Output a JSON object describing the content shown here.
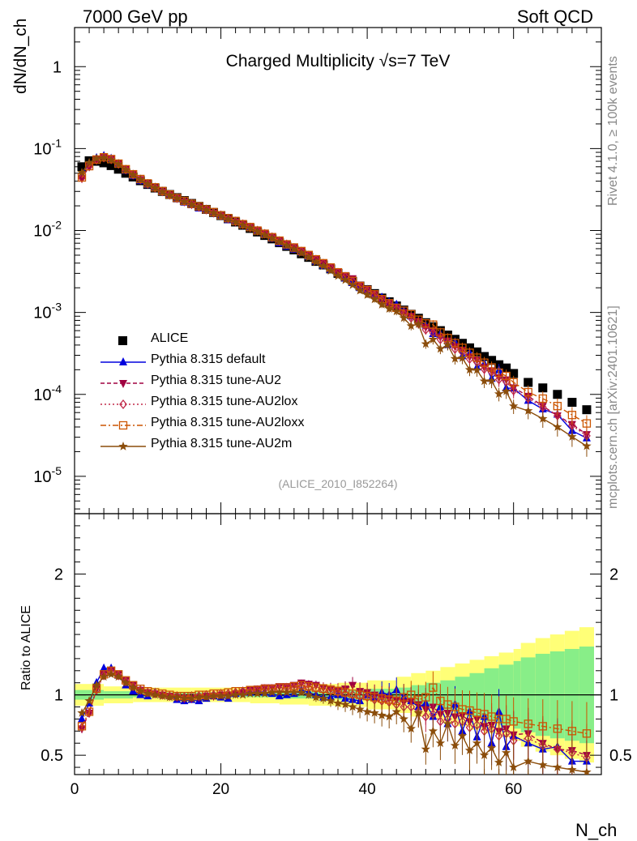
{
  "header": {
    "left": "7000 GeV pp",
    "right": "Soft QCD"
  },
  "side_labels": {
    "top": "Rivet 4.1.0, ≥ 100k events",
    "bottom": "mcplots.cern.ch [arXiv:2401.10621]"
  },
  "chart_data": {
    "type": "scatter",
    "title": "Charged Multiplicity √s=7 TeV",
    "analysis": "(ALICE_2010_I852264)",
    "xlabel": "N_ch",
    "ylabel": "dN/dN_ch",
    "ratio_ylabel": "Ratio to ALICE",
    "xlim": [
      0,
      72
    ],
    "ylim": [
      3.5e-06,
      3
    ],
    "ratio_ylim": [
      0.34,
      2.5
    ],
    "x_ticks": [
      "0",
      "20",
      "40",
      "60"
    ],
    "y_ticks": [
      "10^-5",
      "10^-4",
      "10^-3",
      "10^-2",
      "10^-1",
      "1"
    ],
    "ratio_ticks": [
      "0.5",
      "1",
      "2"
    ],
    "reference": {
      "name": "ALICE",
      "x": [
        1,
        2,
        3,
        4,
        5,
        6,
        7,
        8,
        9,
        10,
        11,
        12,
        13,
        14,
        15,
        16,
        17,
        18,
        19,
        20,
        21,
        22,
        23,
        24,
        25,
        26,
        27,
        28,
        29,
        30,
        31,
        32,
        33,
        34,
        35,
        36,
        37,
        38,
        39,
        40,
        41,
        42,
        43,
        44,
        45,
        46,
        47,
        48,
        49,
        50,
        51,
        52,
        53,
        54,
        55,
        56,
        57,
        58,
        59,
        60,
        62,
        64,
        66,
        68,
        70
      ],
      "values": [
        0.06,
        0.071,
        0.07,
        0.067,
        0.062,
        0.056,
        0.05,
        0.045,
        0.0405,
        0.0365,
        0.033,
        0.03,
        0.0275,
        0.0252,
        0.0232,
        0.0214,
        0.0197,
        0.0181,
        0.0166,
        0.0152,
        0.0139,
        0.0127,
        0.0116,
        0.0106,
        0.0096,
        0.0087,
        0.0079,
        0.0071,
        0.0064,
        0.0058,
        0.0052,
        0.0047,
        0.0042,
        0.0038,
        0.0034,
        0.003,
        0.0027,
        0.0024,
        0.0021,
        0.0019,
        0.0017,
        0.0015,
        0.00135,
        0.0012,
        0.00107,
        0.00095,
        0.00085,
        0.00075,
        0.00067,
        0.0006,
        0.00053,
        0.00047,
        0.00042,
        0.00037,
        0.00033,
        0.00029,
        0.00026,
        0.00023,
        0.00021,
        0.00018,
        0.00014,
        0.00012,
        0.0001,
        8e-05,
        6.5e-05
      ]
    },
    "band_edges": [
      0,
      4,
      8,
      12,
      16,
      20,
      24,
      28,
      32,
      36,
      40,
      44,
      46,
      48,
      50,
      52,
      54,
      56,
      58,
      60,
      61,
      63,
      65,
      67,
      69,
      71
    ],
    "band_total": [
      0.09,
      0.07,
      0.06,
      0.06,
      0.06,
      0.06,
      0.07,
      0.08,
      0.09,
      0.1,
      0.12,
      0.15,
      0.18,
      0.2,
      0.23,
      0.26,
      0.29,
      0.32,
      0.35,
      0.38,
      0.43,
      0.47,
      0.5,
      0.53,
      0.56
    ],
    "band_stat": [
      0.04,
      0.03,
      0.02,
      0.02,
      0.02,
      0.02,
      0.02,
      0.03,
      0.03,
      0.04,
      0.05,
      0.06,
      0.08,
      0.1,
      0.12,
      0.15,
      0.18,
      0.22,
      0.25,
      0.28,
      0.31,
      0.34,
      0.36,
      0.38,
      0.4
    ],
    "series": [
      {
        "name": "Pythia 8.315 default",
        "color": "#0000dd",
        "marker": "triangle-up",
        "dash": "",
        "ratios": [
          0.8,
          0.93,
          1.1,
          1.22,
          1.22,
          1.16,
          1.08,
          1.03,
          1.0,
          0.99,
          1.02,
          1.0,
          0.99,
          0.96,
          0.95,
          0.96,
          0.95,
          0.97,
          0.99,
          0.98,
          0.97,
          1.01,
          1.02,
          1.02,
          1.03,
          1.02,
          1.01,
          0.99,
          1.0,
          1.01,
          1.04,
          1.02,
          1.0,
          0.98,
          0.98,
          1.0,
          0.97,
          0.96,
          0.95,
          1.0,
          0.98,
          1.02,
          1.0,
          1.04,
          0.98,
          0.95,
          0.9,
          0.93,
          0.82,
          0.9,
          0.76,
          0.92,
          0.7,
          0.86,
          0.65,
          0.82,
          0.6,
          0.86,
          0.57,
          0.66,
          0.6,
          0.55,
          0.57,
          0.45,
          0.45
        ]
      },
      {
        "name": "Pythia 8.315 tune-AU2",
        "color": "#a00040",
        "marker": "triangle-down",
        "dash": "5,3",
        "ratios": [
          0.72,
          0.85,
          1.05,
          1.17,
          1.2,
          1.17,
          1.12,
          1.08,
          1.04,
          1.02,
          1.01,
          1.0,
          0.99,
          0.98,
          0.97,
          0.97,
          0.98,
          0.99,
          0.99,
          1.0,
          1.0,
          1.01,
          1.02,
          1.04,
          1.05,
          1.06,
          1.06,
          1.07,
          1.07,
          1.08,
          1.1,
          1.09,
          1.08,
          1.06,
          1.05,
          1.04,
          1.05,
          1.08,
          1.03,
          1.02,
          1.0,
          0.98,
          0.97,
          0.96,
          0.94,
          0.95,
          0.92,
          0.88,
          0.9,
          0.84,
          0.85,
          0.82,
          0.83,
          0.78,
          0.8,
          0.74,
          0.75,
          0.7,
          0.72,
          0.67,
          0.68,
          0.6,
          0.55,
          0.54,
          0.5
        ]
      },
      {
        "name": "Pythia 8.315 tune-AU2lox",
        "color": "#c02848",
        "marker": "diamond-open",
        "dash": "2,3",
        "ratios": [
          0.73,
          0.85,
          1.04,
          1.16,
          1.19,
          1.16,
          1.11,
          1.07,
          1.04,
          1.02,
          1.01,
          1.0,
          0.99,
          0.99,
          0.98,
          0.99,
          0.99,
          1.0,
          1.0,
          1.01,
          1.01,
          1.02,
          1.03,
          1.03,
          1.04,
          1.05,
          1.05,
          1.05,
          1.06,
          1.06,
          1.07,
          1.06,
          1.05,
          1.04,
          1.03,
          1.02,
          1.01,
          1.0,
          0.99,
          0.98,
          0.96,
          0.95,
          0.94,
          0.92,
          0.9,
          0.9,
          0.86,
          0.82,
          0.84,
          0.78,
          0.8,
          0.76,
          0.78,
          0.73,
          0.75,
          0.7,
          0.72,
          0.66,
          0.68,
          0.62,
          0.64,
          0.58,
          0.55,
          0.52,
          0.48
        ]
      },
      {
        "name": "Pythia 8.315 tune-AU2loxx",
        "color": "#cc5500",
        "marker": "square-open",
        "dash": "7,3,2,3",
        "ratios": [
          0.74,
          0.86,
          1.05,
          1.17,
          1.2,
          1.17,
          1.12,
          1.08,
          1.05,
          1.03,
          1.02,
          1.01,
          1.0,
          0.99,
          0.99,
          0.99,
          1.0,
          1.0,
          1.01,
          1.01,
          1.02,
          1.03,
          1.03,
          1.04,
          1.04,
          1.05,
          1.05,
          1.06,
          1.06,
          1.07,
          1.08,
          1.07,
          1.06,
          1.05,
          1.04,
          1.03,
          1.02,
          1.01,
          1.0,
          0.99,
          0.98,
          0.97,
          0.96,
          0.95,
          0.98,
          1.0,
          0.96,
          0.98,
          1.06,
          0.95,
          0.92,
          0.9,
          0.88,
          0.87,
          0.85,
          0.84,
          0.82,
          0.8,
          0.8,
          0.78,
          0.76,
          0.74,
          0.72,
          0.7,
          0.68
        ]
      },
      {
        "name": "Pythia 8.315 tune-AU2m",
        "color": "#8b4d0b",
        "marker": "star",
        "dash": "",
        "ratios": [
          0.85,
          0.95,
          1.08,
          1.15,
          1.17,
          1.15,
          1.1,
          1.06,
          1.03,
          1.01,
          1.0,
          0.99,
          0.98,
          0.98,
          0.97,
          0.97,
          0.98,
          0.98,
          0.99,
          0.99,
          0.99,
          1.0,
          1.0,
          1.01,
          1.01,
          1.01,
          1.02,
          1.02,
          1.02,
          1.02,
          1.02,
          1.0,
          0.98,
          0.97,
          0.95,
          0.93,
          0.92,
          0.9,
          0.88,
          0.86,
          0.85,
          0.83,
          0.82,
          0.86,
          0.8,
          0.72,
          0.85,
          0.55,
          0.7,
          0.6,
          0.76,
          0.58,
          0.66,
          0.54,
          0.6,
          0.5,
          0.56,
          0.44,
          0.52,
          0.4,
          0.45,
          0.42,
          0.4,
          0.38,
          0.36
        ]
      }
    ]
  }
}
